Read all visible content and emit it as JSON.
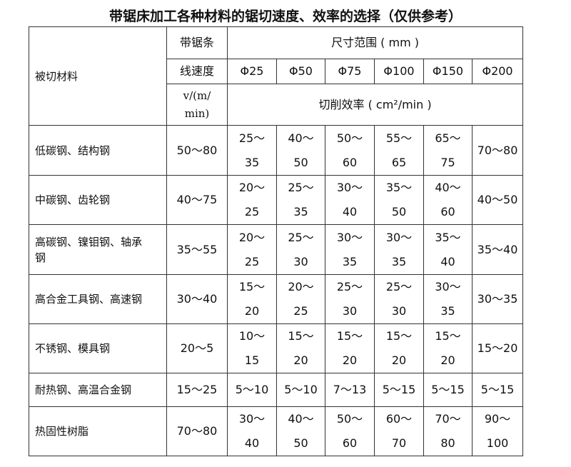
{
  "title": "带锯床加工各种材料的锯切速度、效率的选择（仅供参考）",
  "header": {
    "material": "被切材料",
    "speed_line1": "带锯条",
    "speed_line2": "线速度",
    "speed_unit": "v/(m/\nmin)",
    "size_range": "尺寸范围 ( mm )",
    "sizes": [
      "Φ25",
      "Φ50",
      "Φ75",
      "Φ100",
      "Φ150",
      "Φ200"
    ],
    "efficiency": "切削效率 ( cm²/min )"
  },
  "rows": [
    {
      "material": "低碳钢、结构钢",
      "speed": "50～80",
      "values": [
        "25～\n35",
        "40～\n50",
        "50～\n60",
        "55～\n65",
        "65～\n75",
        "70～80"
      ]
    },
    {
      "material": "中碳钢、齿轮钢",
      "speed": "40～75",
      "values": [
        "20～\n25",
        "25～\n35",
        "30～\n40",
        "35～\n50",
        "40～\n60",
        "40～50"
      ]
    },
    {
      "material": "高碳钢、镍钼钢、轴承\n钢",
      "speed": "35～55",
      "values": [
        "20～\n25",
        "25～\n30",
        "30～\n35",
        "30～\n35",
        "35～\n40",
        "35～40"
      ]
    },
    {
      "material": "高合金工具钢、高速钢",
      "speed": "30～40",
      "values": [
        "15～\n20",
        "20～\n25",
        "25～\n30",
        "25～\n30",
        "30～\n35",
        "30～35"
      ]
    },
    {
      "material": "不锈钢、模具钢",
      "speed": "20～5",
      "values": [
        "10～\n15",
        "15～\n20",
        "15～\n20",
        "15～\n20",
        "15～\n20",
        "15～20"
      ]
    },
    {
      "material": "耐热钢、高温合金钢",
      "speed": "15～25",
      "values": [
        "5～10",
        "5～10",
        "7～13",
        "5～15",
        "5～15",
        "5～15"
      ]
    },
    {
      "material": "热固性树脂",
      "speed": "70～80",
      "values": [
        "30～\n40",
        "40～\n50",
        "50～\n60",
        "60～\n70",
        "70～\n80",
        "90～\n100"
      ]
    }
  ]
}
